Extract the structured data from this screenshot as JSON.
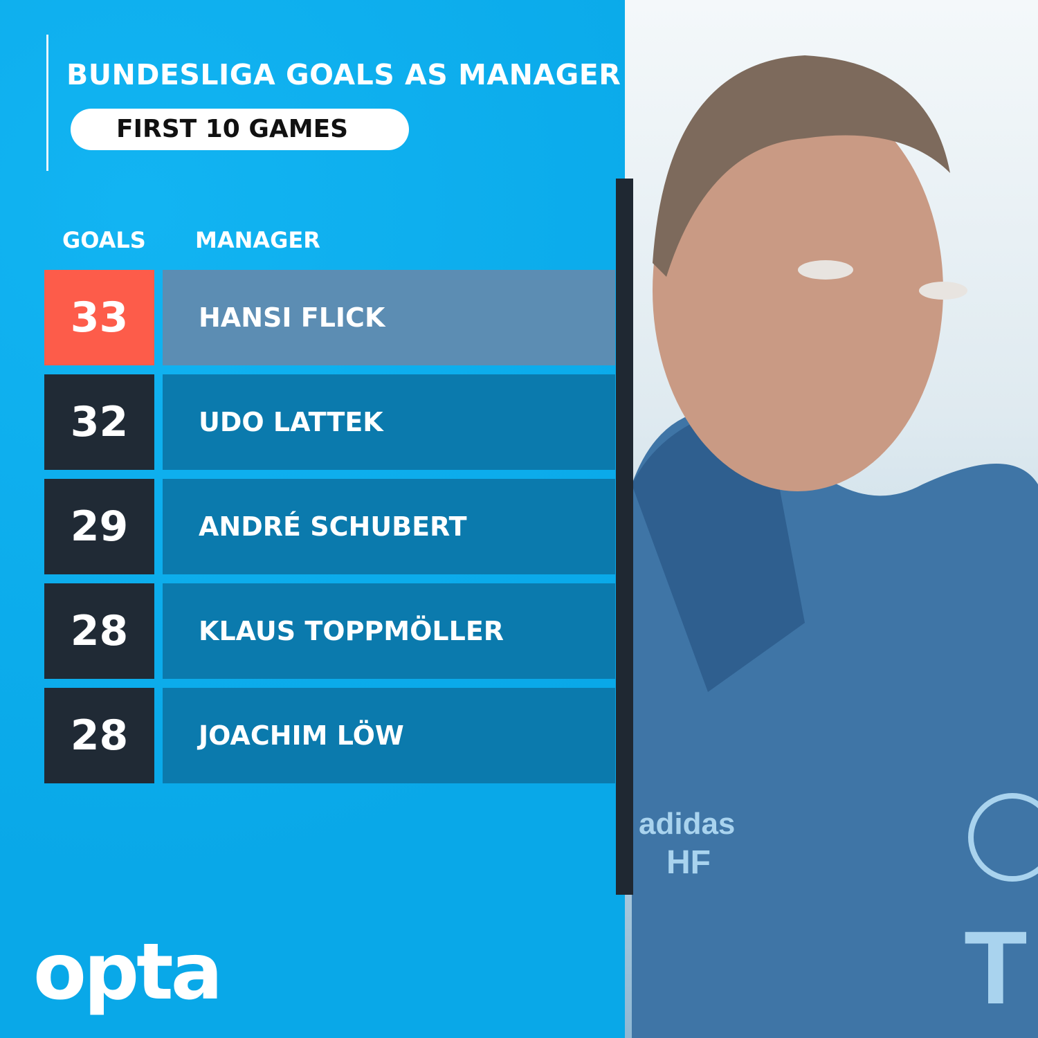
{
  "header": {
    "title": "BUNDESLIGA GOALS AS MANAGER",
    "subtitle": "FIRST 10 GAMES"
  },
  "columns": {
    "goals": "GOALS",
    "manager": "MANAGER"
  },
  "colors": {
    "background": "#0aadee",
    "highlight_goals": "#fd5c4a",
    "highlight_name": "#5c8db3",
    "goals_box": "#202a35",
    "name_box": "#0b7aad"
  },
  "chart_data": {
    "type": "table",
    "title": "BUNDESLIGA GOALS AS MANAGER",
    "subtitle": "FIRST 10 GAMES",
    "columns": [
      "GOALS",
      "MANAGER"
    ],
    "rows": [
      {
        "goals": "33",
        "manager": "HANSI FLICK",
        "highlight": true
      },
      {
        "goals": "32",
        "manager": "UDO LATTEK"
      },
      {
        "goals": "29",
        "manager": "ANDRÉ SCHUBERT"
      },
      {
        "goals": "28",
        "manager": "KLAUS TOPPMÖLLER"
      },
      {
        "goals": "28",
        "manager": "JOACHIM LÖW"
      }
    ]
  },
  "logo": {
    "text": "opta"
  }
}
